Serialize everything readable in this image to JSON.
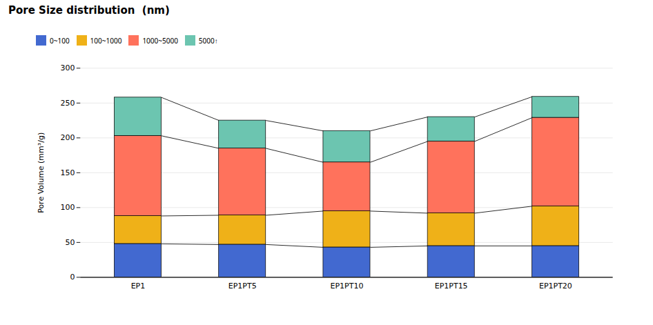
{
  "chart_data": {
    "type": "bar",
    "stacked": true,
    "title": "Pore Size distribution  (nm)",
    "ylabel": "Pore Volume (mm³/g)",
    "categories": [
      "EP1",
      "EP1PT5",
      "EP1PT10",
      "EP1PT15",
      "EP1PT20"
    ],
    "series": [
      {
        "name": "0~100",
        "values": [
          48,
          47,
          43,
          45,
          45
        ]
      },
      {
        "name": "100~1000",
        "values": [
          40,
          42,
          52,
          47,
          57
        ]
      },
      {
        "name": "1000~5000",
        "values": [
          115,
          96,
          70,
          103,
          127
        ]
      },
      {
        "name": "5000↑",
        "values": [
          55,
          40,
          45,
          35,
          30
        ]
      }
    ],
    "ylim": [
      0,
      300
    ],
    "yticks": [
      0,
      50,
      100,
      150,
      200,
      250,
      300
    ],
    "grid": true,
    "legend": "upper left"
  }
}
